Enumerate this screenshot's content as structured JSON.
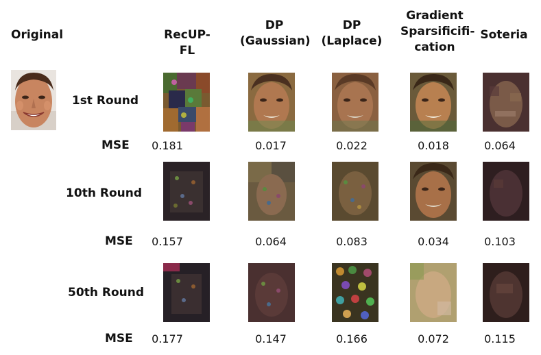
{
  "headers": {
    "original": "Original",
    "recup": "RecUP-FL",
    "dp_gaussian": [
      "DP",
      "(Gaussian)"
    ],
    "dp_laplace": [
      "DP",
      "(Laplace)"
    ],
    "grad_sparse": [
      "Gradient",
      "Sparsificifi-",
      "cation"
    ],
    "soteria": "Soteria"
  },
  "rows": [
    {
      "label": "1st Round",
      "mse_label": "MSE",
      "mse": [
        "0.181",
        "0.017",
        "0.022",
        "0.018",
        "0.064"
      ]
    },
    {
      "label": "10th Round",
      "mse_label": "MSE",
      "mse": [
        "0.157",
        "0.064",
        "0.083",
        "0.034",
        "0.103"
      ]
    },
    {
      "label": "50th Round",
      "mse_label": "MSE",
      "mse": [
        "0.177",
        "0.147",
        "0.166",
        "0.072",
        "0.115"
      ]
    }
  ]
}
